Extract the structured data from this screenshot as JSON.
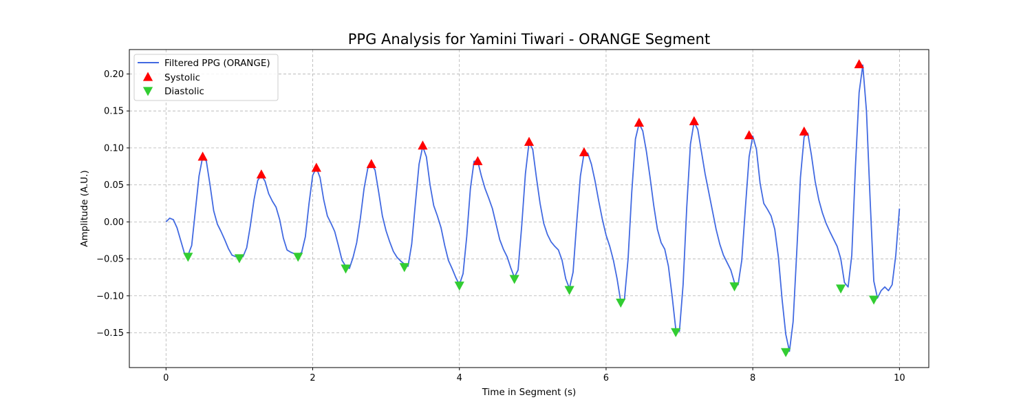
{
  "chart_data": {
    "type": "line",
    "title": "PPG Analysis for Yamini Tiwari - ORANGE Segment",
    "xlabel": "Time in Segment (s)",
    "ylabel": "Amplitude (A.U.)",
    "xlim": [
      -0.5,
      10.4
    ],
    "ylim": [
      -0.197,
      0.233
    ],
    "xticks": [
      0,
      2,
      4,
      6,
      8,
      10
    ],
    "xtick_labels": [
      "0",
      "2",
      "4",
      "6",
      "8",
      "10"
    ],
    "yticks": [
      -0.15,
      -0.1,
      -0.05,
      0.0,
      0.05,
      0.1,
      0.15,
      0.2
    ],
    "ytick_labels": [
      "−0.15",
      "−0.10",
      "−0.05",
      "0.00",
      "0.05",
      "0.10",
      "0.15",
      "0.20"
    ],
    "grid": true,
    "legend_position": "top-left",
    "series": [
      {
        "name": "Filtered PPG (ORANGE)",
        "type": "line",
        "color": "#4169e1",
        "points": [
          [
            0.0,
            0.0
          ],
          [
            0.05,
            0.005
          ],
          [
            0.1,
            0.003
          ],
          [
            0.15,
            -0.008
          ],
          [
            0.2,
            -0.025
          ],
          [
            0.25,
            -0.042
          ],
          [
            0.3,
            -0.045
          ],
          [
            0.35,
            -0.032
          ],
          [
            0.4,
            0.015
          ],
          [
            0.45,
            0.062
          ],
          [
            0.5,
            0.088
          ],
          [
            0.55,
            0.082
          ],
          [
            0.6,
            0.05
          ],
          [
            0.65,
            0.015
          ],
          [
            0.7,
            -0.003
          ],
          [
            0.75,
            -0.013
          ],
          [
            0.8,
            -0.024
          ],
          [
            0.85,
            -0.036
          ],
          [
            0.9,
            -0.045
          ],
          [
            0.95,
            -0.047
          ],
          [
            1.0,
            -0.048
          ],
          [
            1.05,
            -0.047
          ],
          [
            1.1,
            -0.035
          ],
          [
            1.15,
            -0.005
          ],
          [
            1.2,
            0.03
          ],
          [
            1.25,
            0.056
          ],
          [
            1.3,
            0.063
          ],
          [
            1.35,
            0.055
          ],
          [
            1.4,
            0.038
          ],
          [
            1.45,
            0.028
          ],
          [
            1.5,
            0.02
          ],
          [
            1.55,
            0.003
          ],
          [
            1.6,
            -0.022
          ],
          [
            1.65,
            -0.038
          ],
          [
            1.7,
            -0.041
          ],
          [
            1.75,
            -0.043
          ],
          [
            1.8,
            -0.045
          ],
          [
            1.85,
            -0.041
          ],
          [
            1.9,
            -0.02
          ],
          [
            1.95,
            0.025
          ],
          [
            2.0,
            0.063
          ],
          [
            2.05,
            0.073
          ],
          [
            2.1,
            0.06
          ],
          [
            2.15,
            0.03
          ],
          [
            2.2,
            0.008
          ],
          [
            2.25,
            -0.002
          ],
          [
            2.3,
            -0.013
          ],
          [
            2.35,
            -0.032
          ],
          [
            2.4,
            -0.052
          ],
          [
            2.45,
            -0.06
          ],
          [
            2.5,
            -0.063
          ],
          [
            2.55,
            -0.048
          ],
          [
            2.6,
            -0.028
          ],
          [
            2.65,
            0.005
          ],
          [
            2.7,
            0.045
          ],
          [
            2.75,
            0.072
          ],
          [
            2.8,
            0.078
          ],
          [
            2.85,
            0.07
          ],
          [
            2.9,
            0.04
          ],
          [
            2.95,
            0.008
          ],
          [
            3.0,
            -0.012
          ],
          [
            3.05,
            -0.027
          ],
          [
            3.1,
            -0.04
          ],
          [
            3.15,
            -0.048
          ],
          [
            3.2,
            -0.053
          ],
          [
            3.25,
            -0.057
          ],
          [
            3.3,
            -0.06
          ],
          [
            3.35,
            -0.03
          ],
          [
            3.4,
            0.025
          ],
          [
            3.45,
            0.078
          ],
          [
            3.5,
            0.102
          ],
          [
            3.55,
            0.088
          ],
          [
            3.6,
            0.05
          ],
          [
            3.65,
            0.022
          ],
          [
            3.7,
            0.008
          ],
          [
            3.75,
            -0.008
          ],
          [
            3.8,
            -0.032
          ],
          [
            3.85,
            -0.052
          ],
          [
            3.9,
            -0.063
          ],
          [
            3.95,
            -0.075
          ],
          [
            4.0,
            -0.085
          ],
          [
            4.05,
            -0.07
          ],
          [
            4.1,
            -0.02
          ],
          [
            4.15,
            0.045
          ],
          [
            4.2,
            0.082
          ],
          [
            4.25,
            0.082
          ],
          [
            4.3,
            0.062
          ],
          [
            4.35,
            0.045
          ],
          [
            4.4,
            0.032
          ],
          [
            4.45,
            0.018
          ],
          [
            4.5,
            -0.003
          ],
          [
            4.55,
            -0.024
          ],
          [
            4.6,
            -0.037
          ],
          [
            4.65,
            -0.047
          ],
          [
            4.7,
            -0.062
          ],
          [
            4.75,
            -0.075
          ],
          [
            4.8,
            -0.065
          ],
          [
            4.85,
            -0.005
          ],
          [
            4.9,
            0.065
          ],
          [
            4.95,
            0.108
          ],
          [
            5.0,
            0.098
          ],
          [
            5.05,
            0.06
          ],
          [
            5.1,
            0.025
          ],
          [
            5.15,
            -0.002
          ],
          [
            5.2,
            -0.017
          ],
          [
            5.25,
            -0.027
          ],
          [
            5.3,
            -0.033
          ],
          [
            5.35,
            -0.038
          ],
          [
            5.4,
            -0.052
          ],
          [
            5.45,
            -0.077
          ],
          [
            5.5,
            -0.09
          ],
          [
            5.55,
            -0.068
          ],
          [
            5.6,
            0.0
          ],
          [
            5.65,
            0.062
          ],
          [
            5.7,
            0.093
          ],
          [
            5.75,
            0.093
          ],
          [
            5.8,
            0.078
          ],
          [
            5.85,
            0.055
          ],
          [
            5.9,
            0.028
          ],
          [
            5.95,
            0.003
          ],
          [
            6.0,
            -0.018
          ],
          [
            6.05,
            -0.033
          ],
          [
            6.1,
            -0.052
          ],
          [
            6.15,
            -0.077
          ],
          [
            6.2,
            -0.108
          ],
          [
            6.25,
            -0.105
          ],
          [
            6.3,
            -0.05
          ],
          [
            6.35,
            0.04
          ],
          [
            6.4,
            0.112
          ],
          [
            6.45,
            0.133
          ],
          [
            6.5,
            0.123
          ],
          [
            6.55,
            0.095
          ],
          [
            6.6,
            0.06
          ],
          [
            6.65,
            0.022
          ],
          [
            6.7,
            -0.01
          ],
          [
            6.75,
            -0.028
          ],
          [
            6.8,
            -0.037
          ],
          [
            6.85,
            -0.06
          ],
          [
            6.9,
            -0.1
          ],
          [
            6.95,
            -0.145
          ],
          [
            7.0,
            -0.148
          ],
          [
            7.05,
            -0.085
          ],
          [
            7.1,
            0.02
          ],
          [
            7.15,
            0.105
          ],
          [
            7.2,
            0.135
          ],
          [
            7.25,
            0.125
          ],
          [
            7.3,
            0.095
          ],
          [
            7.35,
            0.065
          ],
          [
            7.4,
            0.04
          ],
          [
            7.45,
            0.015
          ],
          [
            7.5,
            -0.01
          ],
          [
            7.55,
            -0.03
          ],
          [
            7.6,
            -0.045
          ],
          [
            7.65,
            -0.055
          ],
          [
            7.7,
            -0.065
          ],
          [
            7.75,
            -0.082
          ],
          [
            7.8,
            -0.085
          ],
          [
            7.85,
            -0.052
          ],
          [
            7.9,
            0.02
          ],
          [
            7.95,
            0.088
          ],
          [
            8.0,
            0.116
          ],
          [
            8.05,
            0.098
          ],
          [
            8.1,
            0.052
          ],
          [
            8.15,
            0.025
          ],
          [
            8.2,
            0.017
          ],
          [
            8.25,
            0.008
          ],
          [
            8.3,
            -0.01
          ],
          [
            8.35,
            -0.048
          ],
          [
            8.4,
            -0.105
          ],
          [
            8.45,
            -0.152
          ],
          [
            8.5,
            -0.175
          ],
          [
            8.55,
            -0.135
          ],
          [
            8.6,
            -0.04
          ],
          [
            8.65,
            0.06
          ],
          [
            8.7,
            0.115
          ],
          [
            8.75,
            0.12
          ],
          [
            8.8,
            0.09
          ],
          [
            8.85,
            0.055
          ],
          [
            8.9,
            0.03
          ],
          [
            8.95,
            0.012
          ],
          [
            9.0,
            -0.002
          ],
          [
            9.05,
            -0.013
          ],
          [
            9.1,
            -0.023
          ],
          [
            9.15,
            -0.033
          ],
          [
            9.2,
            -0.05
          ],
          [
            9.25,
            -0.082
          ],
          [
            9.3,
            -0.088
          ],
          [
            9.35,
            -0.045
          ],
          [
            9.4,
            0.075
          ],
          [
            9.45,
            0.175
          ],
          [
            9.5,
            0.212
          ],
          [
            9.55,
            0.15
          ],
          [
            9.6,
            0.03
          ],
          [
            9.65,
            -0.08
          ],
          [
            9.7,
            -0.103
          ],
          [
            9.75,
            -0.093
          ],
          [
            9.8,
            -0.088
          ],
          [
            9.85,
            -0.093
          ],
          [
            9.9,
            -0.085
          ],
          [
            9.95,
            -0.045
          ],
          [
            10.0,
            0.018
          ]
        ]
      },
      {
        "name": "Systolic",
        "type": "scatter",
        "marker": "triangle-up",
        "color": "#ff0000",
        "points": [
          [
            0.5,
            0.088
          ],
          [
            1.3,
            0.064
          ],
          [
            2.05,
            0.073
          ],
          [
            2.8,
            0.078
          ],
          [
            3.5,
            0.103
          ],
          [
            4.25,
            0.082
          ],
          [
            4.95,
            0.108
          ],
          [
            5.7,
            0.094
          ],
          [
            6.45,
            0.134
          ],
          [
            7.2,
            0.136
          ],
          [
            7.95,
            0.117
          ],
          [
            8.7,
            0.122
          ],
          [
            9.45,
            0.213
          ]
        ]
      },
      {
        "name": "Diastolic",
        "type": "scatter",
        "marker": "triangle-down",
        "color": "#32cd32",
        "points": [
          [
            0.3,
            -0.047
          ],
          [
            1.0,
            -0.049
          ],
          [
            1.8,
            -0.047
          ],
          [
            2.45,
            -0.063
          ],
          [
            3.25,
            -0.061
          ],
          [
            4.0,
            -0.086
          ],
          [
            4.75,
            -0.077
          ],
          [
            5.5,
            -0.092
          ],
          [
            6.2,
            -0.109
          ],
          [
            6.95,
            -0.149
          ],
          [
            7.75,
            -0.087
          ],
          [
            8.45,
            -0.176
          ],
          [
            9.2,
            -0.09
          ],
          [
            9.65,
            -0.105
          ]
        ]
      }
    ]
  }
}
